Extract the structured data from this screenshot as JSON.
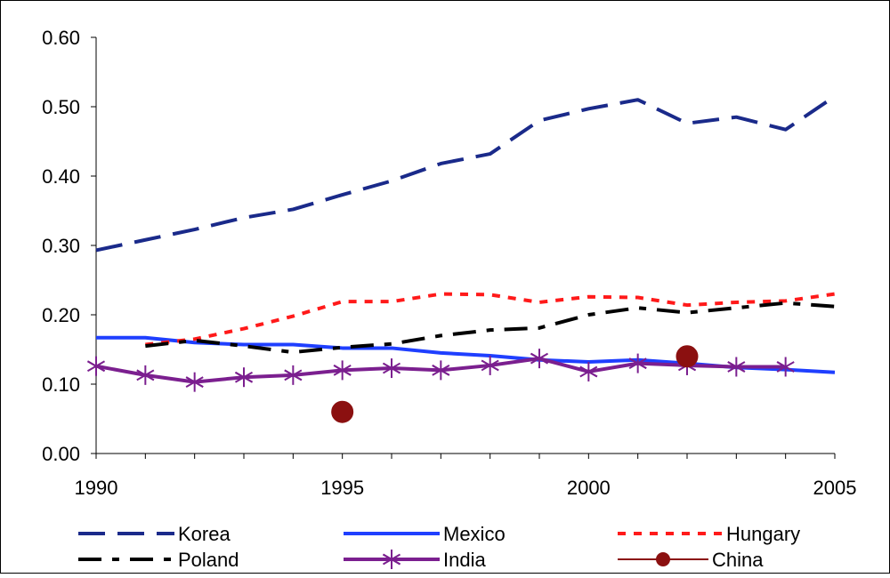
{
  "chart_data": {
    "type": "line",
    "title": "",
    "xlabel": "",
    "ylabel": "",
    "xlim": [
      1990,
      2005
    ],
    "ylim": [
      0,
      0.6
    ],
    "x_ticks": [
      "1990",
      "1995",
      "2000",
      "2005"
    ],
    "y_ticks": [
      "0.00",
      "0.10",
      "0.20",
      "0.30",
      "0.40",
      "0.50",
      "0.60"
    ],
    "grid": false,
    "legend_position": "bottom",
    "series": [
      {
        "name": "Korea",
        "color": "#1a2a8a",
        "style": "long-dash",
        "marker": "none",
        "x": [
          1990,
          1991,
          1992,
          1993,
          1994,
          1995,
          1996,
          1997,
          1998,
          1999,
          2000,
          2001,
          2002,
          2003,
          2004,
          2005
        ],
        "y": [
          0.293,
          0.308,
          0.323,
          0.34,
          0.352,
          0.373,
          0.393,
          0.418,
          0.432,
          0.48,
          0.497,
          0.51,
          0.476,
          0.485,
          0.467,
          0.515
        ]
      },
      {
        "name": "Mexico",
        "color": "#1f3fff",
        "style": "solid",
        "marker": "none",
        "x": [
          1990,
          1991,
          1992,
          1993,
          1994,
          1995,
          1996,
          1997,
          1998,
          1999,
          2000,
          2001,
          2002,
          2003,
          2004,
          2005
        ],
        "y": [
          0.167,
          0.167,
          0.16,
          0.157,
          0.157,
          0.152,
          0.152,
          0.145,
          0.141,
          0.135,
          0.132,
          0.135,
          0.13,
          0.124,
          0.121,
          0.117
        ]
      },
      {
        "name": "Hungary",
        "color": "#ff1a1a",
        "style": "dotted",
        "marker": "none",
        "x": [
          1991,
          1992,
          1993,
          1994,
          1995,
          1996,
          1997,
          1998,
          1999,
          2000,
          2001,
          2002,
          2003,
          2004,
          2005
        ],
        "y": [
          0.157,
          0.165,
          0.18,
          0.198,
          0.219,
          0.219,
          0.23,
          0.229,
          0.218,
          0.226,
          0.225,
          0.214,
          0.218,
          0.22,
          0.23
        ]
      },
      {
        "name": "Poland",
        "color": "#000000",
        "style": "dash-dot",
        "marker": "none",
        "x": [
          1991,
          1992,
          1993,
          1994,
          1995,
          1996,
          1997,
          1998,
          1999,
          2000,
          2001,
          2002,
          2003,
          2004,
          2005
        ],
        "y": [
          0.155,
          0.163,
          0.155,
          0.146,
          0.153,
          0.158,
          0.17,
          0.178,
          0.181,
          0.2,
          0.21,
          0.203,
          0.21,
          0.217,
          0.212
        ]
      },
      {
        "name": "India",
        "color": "#7b1f8f",
        "style": "solid",
        "marker": "asterisk",
        "x": [
          1990,
          1991,
          1992,
          1993,
          1994,
          1995,
          1996,
          1997,
          1998,
          1999,
          2000,
          2001,
          2002,
          2003,
          2004
        ],
        "y": [
          0.126,
          0.113,
          0.103,
          0.11,
          0.113,
          0.12,
          0.123,
          0.12,
          0.127,
          0.137,
          0.118,
          0.13,
          0.127,
          0.125,
          0.125
        ]
      },
      {
        "name": "China",
        "color": "#8b1010",
        "style": "solid",
        "marker": "circle",
        "x": [
          1995,
          2002
        ],
        "y": [
          0.06,
          0.14
        ],
        "connect": false
      }
    ]
  }
}
